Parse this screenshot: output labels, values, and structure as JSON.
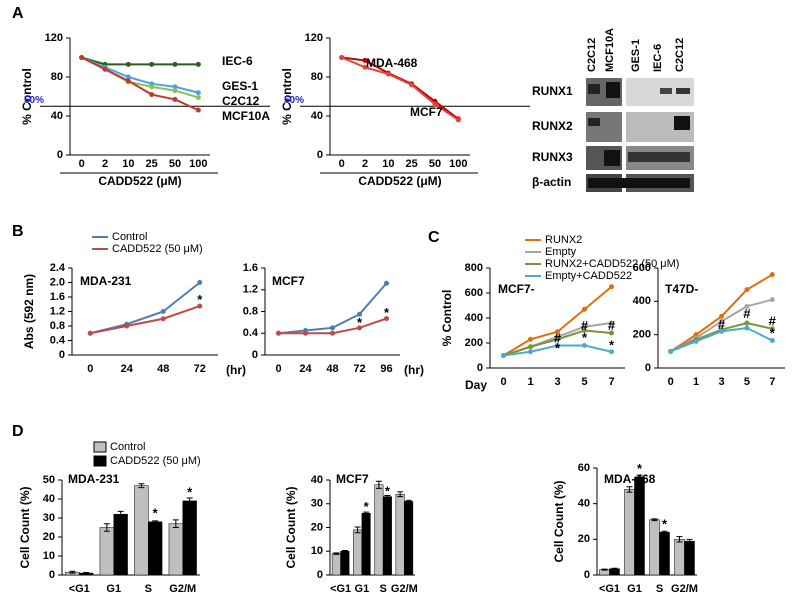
{
  "panel_labels": [
    "A",
    "B",
    "C",
    "D"
  ],
  "blot": {
    "columns": [
      "C2C12",
      "MCF10A",
      "GES-1",
      "IEC-6",
      "C2C12"
    ],
    "rows": [
      "RUNX1",
      "RUNX2",
      "RUNX3",
      "β-actin"
    ]
  },
  "chart_data": [
    {
      "type": "line",
      "x_label": "CADD522 (μM)",
      "y_label": "% Control",
      "categories": [
        "0",
        "2",
        "10",
        "25",
        "50",
        "100"
      ],
      "ylim": [
        0,
        120
      ],
      "yticks": [
        0,
        40,
        80,
        120
      ],
      "ref_line": {
        "value": 50,
        "label": "50%"
      },
      "series": [
        {
          "name": "IEC-6",
          "color": "#2e5e1e",
          "values": [
            100,
            93,
            93,
            93,
            93,
            93
          ]
        },
        {
          "name": "GES-1",
          "color": "#4aa3df",
          "values": [
            100,
            90,
            80,
            73,
            70,
            64
          ]
        },
        {
          "name": "C2C12",
          "color": "#8bbf5a",
          "values": [
            100,
            88,
            75,
            70,
            66,
            59
          ]
        },
        {
          "name": "MCF10A",
          "color": "#c0392b",
          "values": [
            100,
            88,
            76,
            62,
            57,
            46
          ]
        }
      ]
    },
    {
      "type": "line",
      "x_label": "CADD522 (μM)",
      "y_label": "% Control",
      "categories": [
        "0",
        "2",
        "10",
        "25",
        "50",
        "100"
      ],
      "ylim": [
        0,
        120
      ],
      "yticks": [
        0,
        40,
        80,
        120
      ],
      "ref_line": {
        "value": 50,
        "label": "50%"
      },
      "series": [
        {
          "name": "MDA-468",
          "color": "#c00000",
          "values": [
            100,
            97,
            84,
            73,
            55,
            37
          ]
        },
        {
          "name": "MCF7",
          "color": "#e0443a",
          "values": [
            100,
            90,
            83,
            72,
            52,
            36
          ]
        }
      ]
    },
    {
      "type": "line",
      "title": "MDA-231",
      "x_label": "(hr)",
      "y_label": "Abs (592 nm)",
      "categories": [
        "0",
        "24",
        "48",
        "72"
      ],
      "ylim": [
        0,
        2.4
      ],
      "yticks": [
        0,
        0.4,
        0.8,
        1.2,
        1.6,
        {
          "value": 2,
          "label": "2.0"
        },
        2.4
      ],
      "series": [
        {
          "name": "Control",
          "color": "#4a7ebb",
          "values": [
            0.6,
            0.85,
            1.2,
            2.0
          ]
        },
        {
          "name": "CADD522 (50 μM)",
          "color": "#be4b48",
          "values": [
            0.6,
            0.8,
            1.0,
            1.35
          ]
        }
      ],
      "annotations": [
        {
          "text": "*",
          "x": "72",
          "y": 1.5
        }
      ]
    },
    {
      "type": "line",
      "title": "MCF7",
      "x_label": "(hr)",
      "categories": [
        "0",
        "24",
        "48",
        "72",
        "96"
      ],
      "ylim": [
        0,
        1.6
      ],
      "yticks": [
        0,
        0.4,
        0.8,
        1.2,
        1.6
      ],
      "series": [
        {
          "color": "#4a7ebb",
          "values": [
            0.4,
            0.45,
            0.5,
            0.75,
            1.32
          ]
        },
        {
          "color": "#be4b48",
          "values": [
            0.4,
            0.4,
            0.4,
            0.5,
            0.67
          ]
        }
      ],
      "annotations": [
        {
          "text": "*",
          "x": "72",
          "y": 0.58
        },
        {
          "text": "*",
          "x": "96",
          "y": 0.76
        }
      ]
    },
    {
      "type": "line",
      "title": "MCF7-",
      "x_label": "Day",
      "y_label": "% Control",
      "categories": [
        "0",
        "1",
        "3",
        "5",
        "7"
      ],
      "ylim": [
        0,
        800
      ],
      "yticks": [
        0,
        200,
        400,
        600,
        800
      ],
      "series": [
        {
          "name": "RUNX2",
          "color": "#e46c0a",
          "values": [
            100,
            230,
            290,
            470,
            650
          ]
        },
        {
          "name": "Empty",
          "color": "#a6a6a6",
          "values": [
            100,
            170,
            250,
            330,
            360
          ]
        },
        {
          "name": "RUNX2+CADD522 (50 μM)",
          "color": "#77933c",
          "values": [
            100,
            170,
            230,
            300,
            280
          ]
        },
        {
          "name": "Empty+CADD522",
          "color": "#4bacc6",
          "values": [
            100,
            130,
            180,
            180,
            130
          ]
        }
      ],
      "annotations": [
        {
          "text": "#",
          "x": "3",
          "y": 230
        },
        {
          "text": "*",
          "x": "3",
          "y": 150
        },
        {
          "text": "#",
          "x": "5",
          "y": 330
        },
        {
          "text": "*",
          "x": "5",
          "y": 235
        },
        {
          "text": "#",
          "x": "7",
          "y": 330
        },
        {
          "text": "*",
          "x": "7",
          "y": 175
        }
      ]
    },
    {
      "type": "line",
      "title": "T47D-",
      "categories": [
        "0",
        "1",
        "3",
        "5",
        "7"
      ],
      "ylim": [
        0,
        600
      ],
      "yticks": [
        0,
        200,
        400,
        600
      ],
      "series": [
        {
          "color": "#e46c0a",
          "values": [
            100,
            200,
            310,
            470,
            560
          ]
        },
        {
          "color": "#a6a6a6",
          "values": [
            100,
            180,
            280,
            370,
            410
          ]
        },
        {
          "color": "#77933c",
          "values": [
            100,
            170,
            230,
            270,
            235
          ]
        },
        {
          "color": "#4bacc6",
          "values": [
            100,
            160,
            220,
            240,
            165
          ]
        }
      ],
      "annotations": [
        {
          "text": "#",
          "x": "3",
          "y": 255
        },
        {
          "text": "#",
          "x": "5",
          "y": 320
        },
        {
          "text": "#",
          "x": "7",
          "y": 275
        },
        {
          "text": "*",
          "x": "7",
          "y": 205
        }
      ]
    },
    {
      "type": "bar",
      "title": "MDA-231",
      "y_label": "Cell Count (%)",
      "categories": [
        "<G1",
        "G1",
        "S",
        "G2/M"
      ],
      "ylim": [
        0,
        50
      ],
      "yticks": [
        0,
        10,
        20,
        30,
        40,
        50
      ],
      "series": [
        {
          "name": "Control",
          "color": "#bfbfbf",
          "values": [
            1.5,
            25,
            47,
            27
          ],
          "errors": [
            0.5,
            2,
            1,
            2
          ]
        },
        {
          "name": "CADD522 (50 μM)",
          "color": "#000000",
          "values": [
            1,
            32,
            28,
            39
          ],
          "errors": [
            0.3,
            1.5,
            0.5,
            1.5
          ]
        }
      ],
      "annotations": [
        {
          "text": "*",
          "x": "S",
          "y": 32
        },
        {
          "text": "*",
          "x": "G2/M",
          "y": 43
        }
      ]
    },
    {
      "type": "bar",
      "title": "MCF7",
      "y_label": "Cell Count (%)",
      "categories": [
        "<G1",
        "G1",
        "S",
        "G2/M"
      ],
      "ylim": [
        0,
        40
      ],
      "yticks": [
        0,
        10,
        20,
        30,
        40
      ],
      "series": [
        {
          "color": "#bfbfbf",
          "values": [
            9,
            19,
            38,
            34
          ],
          "errors": [
            0.3,
            1.2,
            1.5,
            1
          ]
        },
        {
          "color": "#000000",
          "values": [
            10,
            26,
            33,
            31
          ],
          "errors": [
            0.3,
            0.5,
            0.5,
            0.4
          ]
        }
      ],
      "annotations": [
        {
          "text": "*",
          "x": "G1",
          "y": 28.5
        },
        {
          "text": "*",
          "x": "S",
          "y": 35
        }
      ]
    },
    {
      "type": "bar",
      "title": "MDA-468",
      "y_label": "Cell Count (%)",
      "categories": [
        "<G1",
        "G1",
        "S",
        "G2/M"
      ],
      "ylim": [
        0,
        60
      ],
      "yticks": [
        0,
        20,
        40,
        60
      ],
      "series": [
        {
          "color": "#bfbfbf",
          "values": [
            3,
            48,
            31,
            20
          ],
          "errors": [
            0.3,
            1.5,
            0.5,
            1.5
          ]
        },
        {
          "color": "#000000",
          "values": [
            3.5,
            55,
            24,
            19
          ],
          "errors": [
            0.3,
            1,
            0.5,
            1
          ]
        }
      ],
      "annotations": [
        {
          "text": "*",
          "x": "G1",
          "y": 59
        },
        {
          "text": "*",
          "x": "S",
          "y": 28
        }
      ]
    }
  ]
}
